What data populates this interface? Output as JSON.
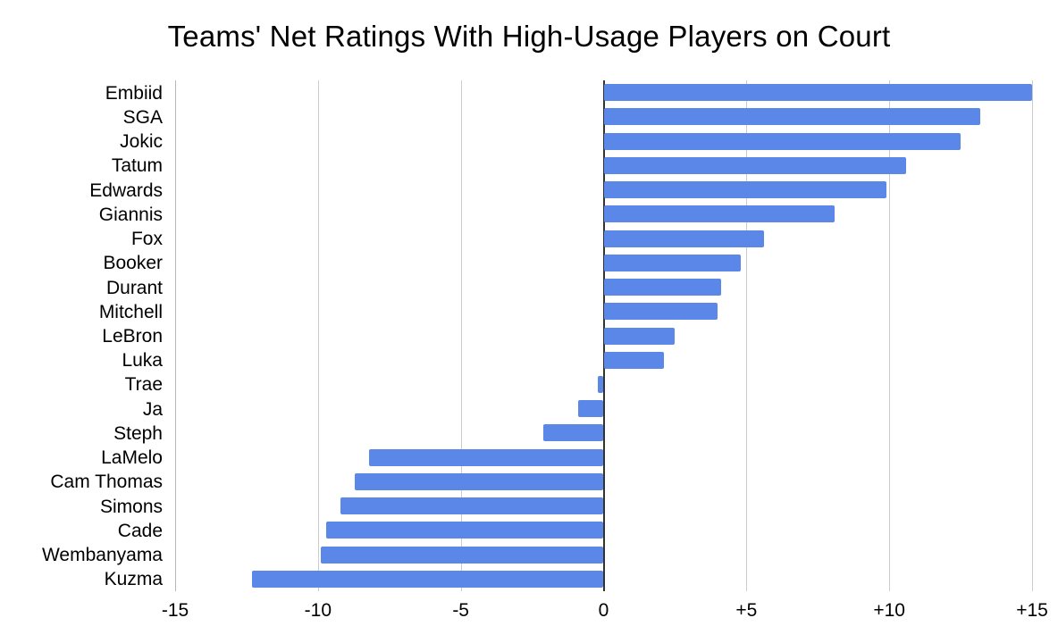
{
  "chart_data": {
    "type": "bar",
    "orientation": "horizontal",
    "title": "Teams' Net Ratings With High-Usage Players on Court",
    "categories": [
      "Embiid",
      "SGA",
      "Jokic",
      "Tatum",
      "Edwards",
      "Giannis",
      "Fox",
      "Booker",
      "Durant",
      "Mitchell",
      "LeBron",
      "Luka",
      "Trae",
      "Ja",
      "Steph",
      "LaMelo",
      "Cam Thomas",
      "Simons",
      "Cade",
      "Wembanyama",
      "Kuzma"
    ],
    "values": [
      15.0,
      13.2,
      12.5,
      10.6,
      9.9,
      8.1,
      5.6,
      4.8,
      4.1,
      4.0,
      2.5,
      2.1,
      -0.2,
      -0.9,
      -2.1,
      -8.2,
      -8.7,
      -9.2,
      -9.7,
      -9.9,
      -12.3
    ],
    "xlabel": "",
    "ylabel": "",
    "xlim": [
      -15,
      15
    ],
    "x_ticks": [
      {
        "value": -15,
        "label": "-15"
      },
      {
        "value": -10,
        "label": "-10"
      },
      {
        "value": -5,
        "label": "-5"
      },
      {
        "value": 0,
        "label": "0"
      },
      {
        "value": 5,
        "label": "+5"
      },
      {
        "value": 10,
        "label": "+10"
      },
      {
        "value": 15,
        "label": "+15"
      }
    ],
    "grid": "vertical-only",
    "legend": "none",
    "bar_color": "#5B87E9",
    "zero_line_color": "#333333",
    "gridline_color": "#cccccc"
  }
}
